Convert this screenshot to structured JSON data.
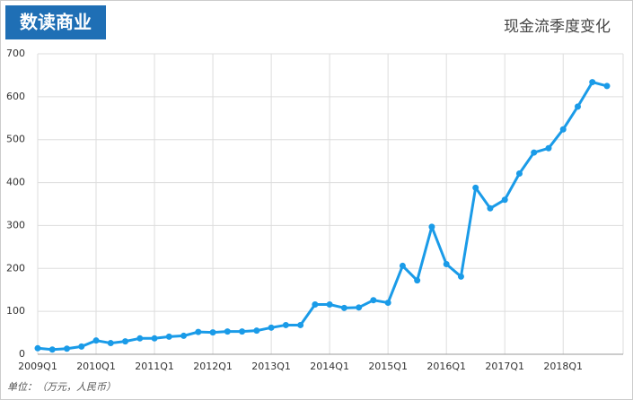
{
  "logo": "数读商业",
  "footnote": "单位：（万元，人民币）",
  "chart_data": {
    "type": "line",
    "title": "现金流季度变化",
    "categories": [
      "2009Q1",
      null,
      null,
      null,
      "2010Q1",
      null,
      null,
      null,
      "2011Q1",
      null,
      null,
      null,
      "2012Q1",
      null,
      null,
      null,
      "2013Q1",
      null,
      null,
      null,
      "2014Q1",
      null,
      null,
      null,
      "2015Q1",
      null,
      null,
      null,
      "2016Q1",
      null,
      null,
      null,
      "2017Q1",
      null,
      null,
      null,
      "2018Q1",
      null,
      null,
      null
    ],
    "values": [
      14,
      11,
      13,
      18,
      32,
      26,
      30,
      37,
      37,
      41,
      43,
      52,
      51,
      53,
      53,
      55,
      62,
      68,
      68,
      116,
      116,
      108,
      109,
      126,
      120,
      206,
      172,
      297,
      210,
      181,
      388,
      340,
      360,
      421,
      470,
      480,
      524,
      577,
      634,
      625
    ],
    "color": "#1a9be8",
    "ylim": [
      0,
      700
    ],
    "yticks": [
      0,
      100,
      200,
      300,
      400,
      500,
      600,
      700
    ],
    "grid": true
  }
}
